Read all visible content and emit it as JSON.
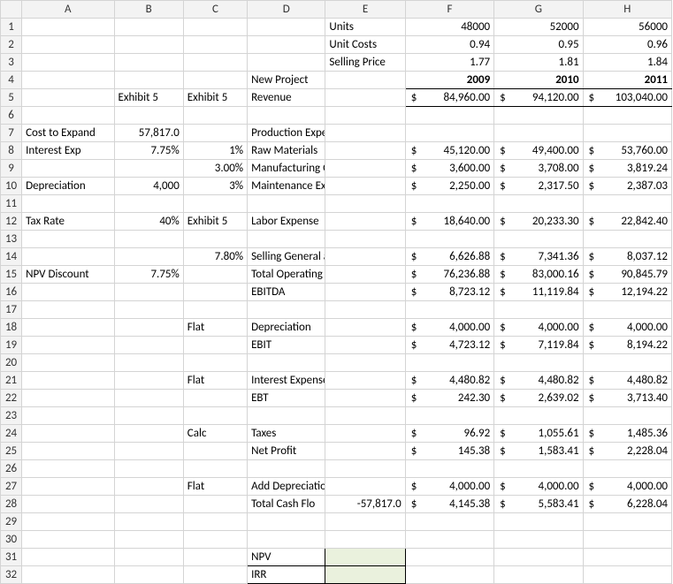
{
  "colHeaders": [
    "A",
    "B",
    "C",
    "D",
    "E",
    "F",
    "G",
    "H"
  ],
  "rows": {
    "1": {
      "E": "Units",
      "F": "48000",
      "G": "52000",
      "H": "56000"
    },
    "2": {
      "E": "Unit Costs",
      "F": "0.94",
      "G": "0.95",
      "H": "0.96"
    },
    "3": {
      "E": "Selling Price",
      "F": "1.77",
      "G": "1.81",
      "H": "1.84"
    },
    "4": {
      "D": "New Project",
      "F": "2009",
      "G": "2010",
      "H": "2011"
    },
    "5": {
      "B": "Exhibit 5",
      "C": "Exhibit 5",
      "D": "Revenue",
      "F": "84,960.00",
      "G": "94,120.00",
      "H": "103,040.00"
    },
    "7": {
      "A": "Cost to Expand",
      "B": "57,817.0",
      "D": "Production Expenses"
    },
    "8": {
      "A": "Interest Exp",
      "B": "7.75%",
      "C": "1%",
      "D": "Raw Materials",
      "F": "45,120.00",
      "G": "49,400.00",
      "H": "53,760.00"
    },
    "9": {
      "C": "3.00%",
      "D": "Manufacturing Overhead",
      "F": "3,600.00",
      "G": "3,708.00",
      "H": "3,819.24"
    },
    "10": {
      "A": "Depreciation",
      "B": "4,000",
      "C": "3%",
      "D": "Maintenance Expense",
      "F": "2,250.00",
      "G": "2,317.50",
      "H": "2,387.03"
    },
    "12": {
      "A": "Tax Rate",
      "B": "40%",
      "C": "Exhibit 5",
      "D": "Labor Expense",
      "F": "18,640.00",
      "G": "20,233.30",
      "H": "22,842.40"
    },
    "14": {
      "C": "7.80%",
      "D": "Selling General and Admin",
      "F": "6,626.88",
      "G": "7,341.36",
      "H": "8,037.12"
    },
    "15": {
      "A": "NPV Discount",
      "B": "7.75%",
      "D": "Total Operating Expense",
      "F": "76,236.88",
      "G": "83,000.16",
      "H": "90,845.79"
    },
    "16": {
      "D": "EBITDA",
      "F": "8,723.12",
      "G": "11,119.84",
      "H": "12,194.22"
    },
    "18": {
      "C": "Flat",
      "D": "Depreciation",
      "F": "4,000.00",
      "G": "4,000.00",
      "H": "4,000.00"
    },
    "19": {
      "D": "EBIT",
      "F": "4,723.12",
      "G": "7,119.84",
      "H": "8,194.22"
    },
    "21": {
      "C": "Flat",
      "D": "Interest Expense",
      "F": "4,480.82",
      "G": "4,480.82",
      "H": "4,480.82"
    },
    "22": {
      "D": "EBT",
      "F": "242.30",
      "G": "2,639.02",
      "H": "3,713.40"
    },
    "24": {
      "C": "Calc",
      "D": "Taxes",
      "F": "96.92",
      "G": "1,055.61",
      "H": "1,485.36"
    },
    "25": {
      "D": "Net Profit",
      "F": "145.38",
      "G": "1,583.41",
      "H": "2,228.04"
    },
    "27": {
      "C": "Flat",
      "D": "Add Depreciation",
      "F": "4,000.00",
      "G": "4,000.00",
      "H": "4,000.00"
    },
    "28": {
      "D": "Total Cash Flo",
      "E": "-57,817.0",
      "F": "4,145.38",
      "G": "5,583.41",
      "H": "6,228.04"
    },
    "31": {
      "D": "NPV"
    },
    "32": {
      "D": "IRR"
    }
  },
  "currencyRows": [
    5,
    8,
    9,
    10,
    12,
    14,
    15,
    16,
    18,
    19,
    21,
    22,
    24,
    25,
    27,
    28
  ],
  "numericRightB": [
    7,
    8,
    10,
    12,
    15
  ],
  "numericRightC": [
    8,
    9,
    10,
    14
  ],
  "years": {
    "bold": true,
    "underline": true
  },
  "cellStyles": {
    "topline": {
      "15": [
        "F",
        "G",
        "H"
      ],
      "19": [
        "F",
        "G",
        "H"
      ],
      "22": [
        "F",
        "G",
        "H"
      ],
      "25": [
        "F",
        "G",
        "H"
      ]
    },
    "uline": {
      "4": [
        "F",
        "G",
        "H"
      ],
      "5": [
        "F",
        "G",
        "H"
      ]
    },
    "boxBlack": {
      "31": [
        "D",
        "E"
      ],
      "32": [
        "D",
        "E"
      ]
    },
    "shade": {
      "31": [
        "E"
      ],
      "32": [
        "E"
      ]
    }
  },
  "numRows": 32
}
